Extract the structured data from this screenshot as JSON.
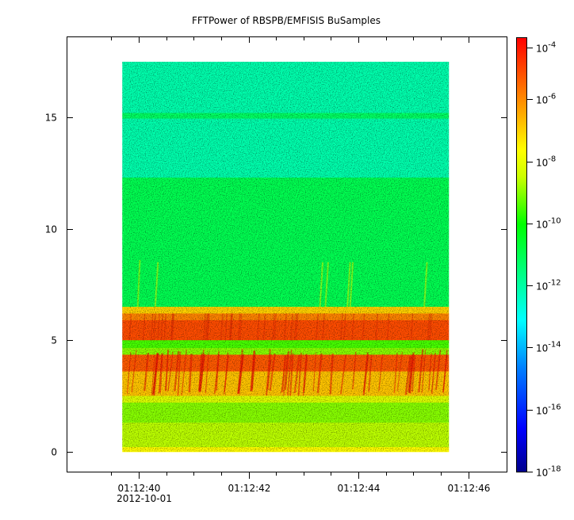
{
  "chart_data": {
    "type": "heatmap",
    "title": "FFTPower of RBSPB/EMFISIS  BuSamples",
    "xlabel": "",
    "ylabel": "",
    "date_label": "2012-10-01",
    "x_ticks": [
      {
        "value": 40,
        "label": "01:12:40"
      },
      {
        "value": 42,
        "label": "01:12:42"
      },
      {
        "value": 44,
        "label": "01:12:44"
      },
      {
        "value": 46,
        "label": "01:12:46"
      }
    ],
    "x_minor_ticks": [
      39.5,
      40.5,
      41,
      41.5,
      42.5,
      43,
      43.5,
      44.5,
      45,
      45.5
    ],
    "xlim": [
      38.7,
      46.7
    ],
    "data_x_range": [
      39.7,
      45.65
    ],
    "y_ticks": [
      {
        "value": 0,
        "label": "0"
      },
      {
        "value": 5,
        "label": "5"
      },
      {
        "value": 10,
        "label": "10"
      },
      {
        "value": 15,
        "label": "15"
      }
    ],
    "ylim": [
      -0.9,
      18.6
    ],
    "data_y_range": [
      0,
      17.5
    ],
    "colorbar": {
      "scale": "log",
      "range_exp": [
        -18,
        -4
      ],
      "ticks": [
        {
          "exp": -4,
          "label": "-4"
        },
        {
          "exp": -6,
          "label": "-6"
        },
        {
          "exp": -8,
          "label": "-8"
        },
        {
          "exp": -10,
          "label": "-10"
        },
        {
          "exp": -12,
          "label": "-12"
        },
        {
          "exp": -14,
          "label": "-14"
        },
        {
          "exp": -16,
          "label": "-16"
        },
        {
          "exp": -18,
          "label": "-18"
        }
      ],
      "base_label": "10"
    },
    "bands": [
      {
        "y_from": 15.2,
        "y_to": 17.5,
        "log_power": -12.1
      },
      {
        "y_from": 14.95,
        "y_to": 15.2,
        "log_power": -11.2
      },
      {
        "y_from": 12.3,
        "y_to": 14.95,
        "log_power": -12.1
      },
      {
        "y_from": 6.5,
        "y_to": 12.3,
        "log_power": -11.0
      },
      {
        "y_from": 6.2,
        "y_to": 6.5,
        "log_power": -7.0
      },
      {
        "y_from": 5.9,
        "y_to": 6.2,
        "log_power": -5.9
      },
      {
        "y_from": 5.0,
        "y_to": 5.9,
        "log_power": -5.1
      },
      {
        "y_from": 4.65,
        "y_to": 5.0,
        "log_power": -9.5
      },
      {
        "y_from": 4.35,
        "y_to": 4.65,
        "log_power": -9.0
      },
      {
        "y_from": 3.6,
        "y_to": 4.35,
        "log_power": -5.3
      },
      {
        "y_from": 2.5,
        "y_to": 3.6,
        "log_power": -6.8
      },
      {
        "y_from": 2.2,
        "y_to": 2.5,
        "log_power": -8.2
      },
      {
        "y_from": 1.3,
        "y_to": 2.2,
        "log_power": -9.0
      },
      {
        "y_from": 0.2,
        "y_to": 1.3,
        "log_power": -8.6
      },
      {
        "y_from": 0.0,
        "y_to": 0.2,
        "log_power": -7.6
      }
    ]
  }
}
